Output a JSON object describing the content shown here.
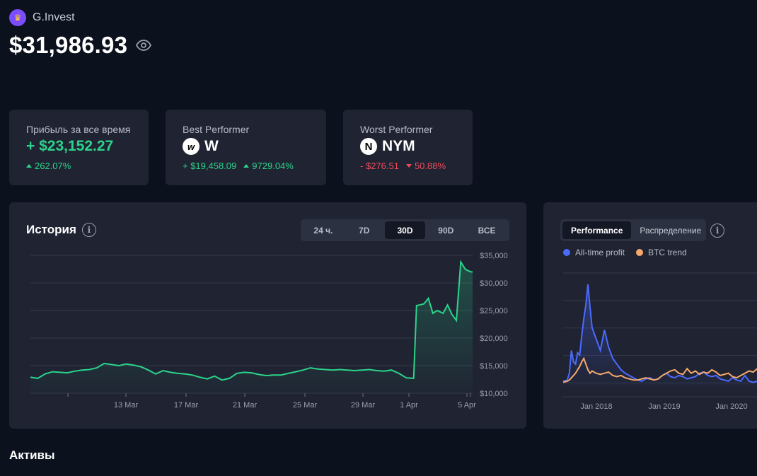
{
  "brand": {
    "name": "G.Invest",
    "logo_icon": "crown-icon"
  },
  "balance": {
    "value": "$31,986.93",
    "icon": "eye-icon"
  },
  "stats": {
    "profit": {
      "title": "Прибыль за все время",
      "value": "+ $23,152.27",
      "change": "262.07%"
    },
    "best": {
      "title": "Best Performer",
      "coin_letter": "w",
      "symbol": "W",
      "amount": "+ $19,458.09",
      "change": "9729.04%"
    },
    "worst": {
      "title": "Worst Performer",
      "coin_letter": "N",
      "symbol": "NYM",
      "amount": "- $276.51",
      "change": "50.88%"
    }
  },
  "history": {
    "title": "История",
    "tabs": [
      {
        "label": "24 ч.",
        "active": false
      },
      {
        "label": "7D",
        "active": false
      },
      {
        "label": "30D",
        "active": true
      },
      {
        "label": "90D",
        "active": false
      },
      {
        "label": "ВСЕ",
        "active": false
      }
    ]
  },
  "performance": {
    "tabs": [
      {
        "label": "Performance",
        "active": true
      },
      {
        "label": "Распределение",
        "active": false
      }
    ],
    "legend": [
      {
        "label": "All-time profit",
        "color": "#4b6bff"
      },
      {
        "label": "BTC trend",
        "color": "#f7a96b"
      }
    ]
  },
  "assets_title": "Активы",
  "colors": {
    "green": "#2bd48a",
    "red": "#f04b5a",
    "blue": "#4b6bff",
    "orange": "#f7a96b"
  },
  "chart_data": [
    {
      "type": "area",
      "title": "История",
      "x_ticks": [
        "13 Mar",
        "17 Mar",
        "21 Mar",
        "25 Mar",
        "29 Mar",
        "1 Apr",
        "5 Apr"
      ],
      "y_ticks": [
        "$35,000",
        "$30,000",
        "$25,000",
        "$20,000",
        "$15,000",
        "$10,000"
      ],
      "ylim": [
        10000,
        35000
      ],
      "xlim": [
        0,
        30
      ],
      "x": [
        0,
        0.5,
        1,
        1.5,
        2,
        2.5,
        3,
        3.5,
        4,
        4.5,
        5,
        5.5,
        6,
        6.5,
        7,
        7.5,
        8,
        8.5,
        9,
        9.5,
        10,
        10.5,
        11,
        11.5,
        12,
        12.5,
        13,
        13.5,
        14,
        14.5,
        15,
        15.5,
        16,
        16.5,
        17,
        17.5,
        18,
        18.5,
        19,
        19.5,
        20,
        20.5,
        21,
        21.5,
        22,
        22.5,
        23,
        23.5,
        24,
        24.5,
        25,
        25.5,
        26,
        26.2,
        26.4,
        26.7,
        27,
        27.3,
        27.6,
        28,
        28.3,
        28.6,
        28.9,
        29.2,
        29.5,
        29.7,
        29.9,
        30
      ],
      "values": [
        12900,
        12700,
        13500,
        13900,
        13800,
        13700,
        14000,
        14200,
        14300,
        14600,
        15400,
        15200,
        15000,
        15300,
        15100,
        14800,
        14200,
        13500,
        14100,
        13800,
        13600,
        13500,
        13300,
        12900,
        12600,
        13100,
        12400,
        12700,
        13600,
        13800,
        13700,
        13400,
        13200,
        13300,
        13300,
        13600,
        13900,
        14200,
        14600,
        14400,
        14300,
        14200,
        14300,
        14200,
        14100,
        14200,
        14300,
        14100,
        14000,
        14200,
        13600,
        12800,
        12700,
        25900,
        26000,
        26200,
        27200,
        24500,
        25000,
        24500,
        26000,
        24300,
        23200,
        33800,
        32500,
        32200,
        32000,
        32000
      ]
    },
    {
      "type": "line",
      "title": "Performance",
      "x_ticks": [
        "Jan 2018",
        "Jan 2019",
        "Jan 2020"
      ],
      "series": [
        {
          "name": "All-time profit",
          "x": [
            0,
            2,
            3,
            4,
            5,
            6,
            7,
            8,
            9,
            10,
            11,
            12,
            13,
            14,
            16,
            18,
            20,
            22,
            24,
            26,
            28,
            30,
            32,
            34,
            36,
            38,
            40,
            42,
            44,
            46,
            48,
            50,
            52,
            54,
            56,
            58,
            60,
            62,
            64,
            66,
            68,
            70,
            72,
            74,
            76,
            78,
            80,
            82,
            84,
            86,
            88,
            90,
            92,
            94,
            96,
            98,
            100
          ],
          "values": [
            0.05,
            0.06,
            0.12,
            0.32,
            0.22,
            0.2,
            0.3,
            0.28,
            0.45,
            0.6,
            0.72,
            0.9,
            0.7,
            0.52,
            0.42,
            0.32,
            0.5,
            0.35,
            0.25,
            0.2,
            0.15,
            0.12,
            0.1,
            0.08,
            0.06,
            0.05,
            0.07,
            0.08,
            0.06,
            0.07,
            0.1,
            0.12,
            0.09,
            0.08,
            0.1,
            0.09,
            0.07,
            0.08,
            0.09,
            0.12,
            0.13,
            0.1,
            0.09,
            0.1,
            0.07,
            0.06,
            0.05,
            0.08,
            0.06,
            0.05,
            0.1,
            0.05,
            0.04,
            0.05,
            0.06,
            0.07,
            0.08
          ]
        },
        {
          "name": "BTC trend",
          "x": [
            0,
            2,
            3,
            4,
            5,
            6,
            7,
            8,
            9,
            10,
            11,
            12,
            13,
            14,
            16,
            18,
            20,
            22,
            24,
            26,
            28,
            30,
            32,
            34,
            36,
            38,
            40,
            42,
            44,
            46,
            48,
            50,
            52,
            54,
            56,
            58,
            60,
            62,
            64,
            66,
            68,
            70,
            72,
            74,
            76,
            78,
            80,
            82,
            84,
            86,
            88,
            90,
            92,
            94,
            96,
            98,
            100
          ],
          "values": [
            0.04,
            0.05,
            0.06,
            0.08,
            0.1,
            0.12,
            0.15,
            0.18,
            0.22,
            0.25,
            0.2,
            0.15,
            0.12,
            0.14,
            0.12,
            0.11,
            0.12,
            0.13,
            0.1,
            0.09,
            0.1,
            0.08,
            0.07,
            0.06,
            0.06,
            0.07,
            0.08,
            0.07,
            0.06,
            0.07,
            0.1,
            0.12,
            0.14,
            0.15,
            0.12,
            0.11,
            0.16,
            0.12,
            0.14,
            0.11,
            0.13,
            0.12,
            0.15,
            0.13,
            0.1,
            0.11,
            0.12,
            0.09,
            0.08,
            0.1,
            0.12,
            0.14,
            0.13,
            0.16,
            0.18,
            0.2,
            0.19
          ]
        }
      ]
    }
  ]
}
